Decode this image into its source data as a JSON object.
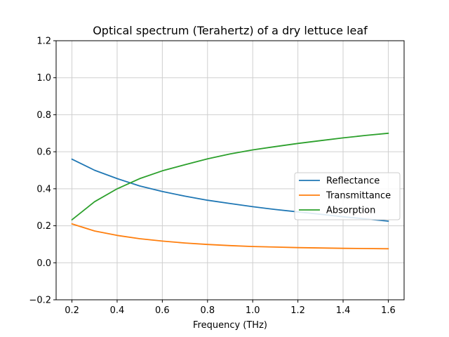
{
  "chart_data": {
    "type": "line",
    "title": "Optical spectrum (Terahertz) of a dry lettuce leaf",
    "xlabel": "Frequency (THz)",
    "ylabel": "",
    "xlim": [
      0.13,
      1.67
    ],
    "ylim": [
      -0.2,
      1.2
    ],
    "xticks": [
      "0.2",
      "0.4",
      "0.6",
      "0.8",
      "1.0",
      "1.2",
      "1.4",
      "1.6"
    ],
    "yticks": [
      "−0.2",
      "0.0",
      "0.2",
      "0.4",
      "0.6",
      "0.8",
      "1.0",
      "1.2"
    ],
    "grid": true,
    "legend_position": "center-right",
    "x": [
      0.2,
      0.3,
      0.4,
      0.5,
      0.6,
      0.7,
      0.8,
      0.9,
      1.0,
      1.1,
      1.2,
      1.3,
      1.4,
      1.5,
      1.6
    ],
    "series": [
      {
        "name": "Reflectance",
        "color": "#1f77b4",
        "values": [
          0.56,
          0.5,
          0.455,
          0.415,
          0.385,
          0.36,
          0.338,
          0.32,
          0.303,
          0.288,
          0.275,
          0.262,
          0.249,
          0.237,
          0.225
        ]
      },
      {
        "name": "Transmittance",
        "color": "#ff7f0e",
        "values": [
          0.21,
          0.172,
          0.148,
          0.13,
          0.117,
          0.107,
          0.099,
          0.093,
          0.088,
          0.085,
          0.082,
          0.08,
          0.078,
          0.077,
          0.076
        ]
      },
      {
        "name": "Absorption",
        "color": "#2ca02c",
        "values": [
          0.232,
          0.33,
          0.4,
          0.455,
          0.497,
          0.53,
          0.562,
          0.588,
          0.61,
          0.628,
          0.645,
          0.66,
          0.675,
          0.688,
          0.7
        ]
      }
    ]
  }
}
